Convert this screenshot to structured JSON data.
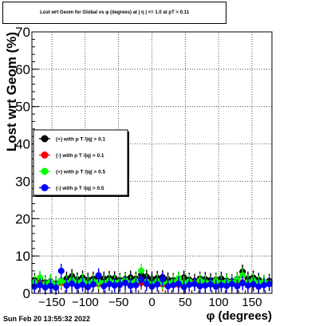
{
  "title": "Lost wrt Geom for Global vs φ (degrees) at | η | <= 1.0 at pT > 0.11",
  "timestamp": "Sun Feb 20 13:55:32 2022",
  "colors": {
    "series1": "#000000",
    "series2": "#ff0000",
    "series3": "#00ff00",
    "series4": "#0000ff"
  },
  "chart_data": {
    "type": "scatter",
    "title": "Lost wrt Geom for Global vs φ (degrees) at | η | <= 1.0 at pT > 0.11",
    "xlabel": "φ (degrees)",
    "ylabel": "Lost wrt Geom (%)",
    "xlim": [
      -180,
      180
    ],
    "ylim": [
      0,
      70
    ],
    "x_ticks": [
      -150,
      -100,
      -50,
      0,
      50,
      100,
      150
    ],
    "x_tick_labels": [
      "−150",
      "−100",
      "−50",
      "0",
      "50",
      "100",
      "150"
    ],
    "y_ticks": [
      0,
      10,
      20,
      30,
      40,
      50,
      60,
      70
    ],
    "y_tick_labels": [
      "0",
      "10",
      "20",
      "30",
      "40",
      "50",
      "60",
      "70"
    ],
    "grid": true,
    "legend_position": "middle-left",
    "series": [
      {
        "name": "(+) with p T /|q| > 0.1",
        "color": "#000000",
        "points": [
          [
            -176,
            3.5
          ],
          [
            -168,
            3.8
          ],
          [
            -160,
            2.9
          ],
          [
            -152,
            3.2
          ],
          [
            -144,
            2.6
          ],
          [
            -136,
            3.4
          ],
          [
            -128,
            3.9
          ],
          [
            -120,
            4.6
          ],
          [
            -112,
            3.7
          ],
          [
            -104,
            4.2
          ],
          [
            -96,
            3.6
          ],
          [
            -88,
            3.9
          ],
          [
            -80,
            4.4
          ],
          [
            -72,
            3.9
          ],
          [
            -64,
            4.1
          ],
          [
            -56,
            4.0
          ],
          [
            -48,
            3.5
          ],
          [
            -40,
            3.8
          ],
          [
            -32,
            4.2
          ],
          [
            -24,
            3.9
          ],
          [
            -16,
            5.0
          ],
          [
            -8,
            4.4
          ],
          [
            0,
            3.8
          ],
          [
            8,
            4.1
          ],
          [
            16,
            4.3
          ],
          [
            24,
            3.7
          ],
          [
            32,
            3.5
          ],
          [
            40,
            3.9
          ],
          [
            48,
            4.2
          ],
          [
            56,
            3.6
          ],
          [
            64,
            3.3
          ],
          [
            72,
            3.9
          ],
          [
            80,
            3.8
          ],
          [
            88,
            3.5
          ],
          [
            96,
            3.6
          ],
          [
            104,
            3.9
          ],
          [
            112,
            3.4
          ],
          [
            120,
            3.2
          ],
          [
            128,
            3.8
          ],
          [
            136,
            5.8
          ],
          [
            144,
            3.9
          ],
          [
            152,
            4.2
          ],
          [
            160,
            3.6
          ],
          [
            168,
            3.1
          ],
          [
            176,
            3.3
          ]
        ]
      },
      {
        "name": "(-) with p T /|q| > 0.1",
        "color": "#ff0000",
        "points": [
          [
            -176,
            2.2
          ],
          [
            -168,
            2.6
          ],
          [
            -160,
            2.0
          ],
          [
            -152,
            2.4
          ],
          [
            -144,
            1.9
          ],
          [
            -136,
            2.8
          ],
          [
            -128,
            2.4
          ],
          [
            -120,
            2.9
          ],
          [
            -112,
            2.3
          ],
          [
            -104,
            2.6
          ],
          [
            -96,
            2.1
          ],
          [
            -88,
            2.7
          ],
          [
            -80,
            2.5
          ],
          [
            -72,
            2.2
          ],
          [
            -64,
            2.7
          ],
          [
            -56,
            2.3
          ],
          [
            -48,
            2.6
          ],
          [
            -40,
            2.9
          ],
          [
            -32,
            2.4
          ],
          [
            -24,
            2.2
          ],
          [
            -16,
            2.8
          ],
          [
            -8,
            2.5
          ],
          [
            0,
            2.1
          ],
          [
            8,
            2.7
          ],
          [
            16,
            2.4
          ],
          [
            24,
            2.2
          ],
          [
            32,
            2.6
          ],
          [
            40,
            2.3
          ],
          [
            48,
            2.0
          ],
          [
            56,
            2.5
          ],
          [
            64,
            2.8
          ],
          [
            72,
            2.2
          ],
          [
            80,
            2.4
          ],
          [
            88,
            2.6
          ],
          [
            96,
            2.1
          ],
          [
            104,
            2.5
          ],
          [
            112,
            2.3
          ],
          [
            120,
            2.7
          ],
          [
            128,
            2.2
          ],
          [
            136,
            2.9
          ],
          [
            144,
            2.4
          ],
          [
            152,
            2.6
          ],
          [
            160,
            2.2
          ],
          [
            168,
            2.5
          ],
          [
            176,
            2.8
          ]
        ]
      },
      {
        "name": "(+) with p T /|q| > 0.5",
        "color": "#00ff00",
        "points": [
          [
            -176,
            3.0
          ],
          [
            -168,
            4.2
          ],
          [
            -160,
            2.6
          ],
          [
            -152,
            3.1
          ],
          [
            -144,
            2.4
          ],
          [
            -136,
            3.3
          ],
          [
            -128,
            2.8
          ],
          [
            -120,
            3.6
          ],
          [
            -112,
            2.9
          ],
          [
            -104,
            3.4
          ],
          [
            -96,
            2.7
          ],
          [
            -88,
            3.2
          ],
          [
            -80,
            3.0
          ],
          [
            -72,
            2.8
          ],
          [
            -64,
            3.4
          ],
          [
            -56,
            2.9
          ],
          [
            -48,
            3.1
          ],
          [
            -40,
            3.5
          ],
          [
            -32,
            2.7
          ],
          [
            -24,
            3.3
          ],
          [
            -16,
            6.0
          ],
          [
            -8,
            3.1
          ],
          [
            0,
            2.6
          ],
          [
            8,
            3.3
          ],
          [
            16,
            2.9
          ],
          [
            24,
            2.7
          ],
          [
            32,
            3.1
          ],
          [
            40,
            4.0
          ],
          [
            48,
            2.8
          ],
          [
            56,
            3.2
          ],
          [
            64,
            2.6
          ],
          [
            72,
            3.4
          ],
          [
            80,
            3.0
          ],
          [
            88,
            2.7
          ],
          [
            96,
            3.3
          ],
          [
            104,
            2.8
          ],
          [
            112,
            3.1
          ],
          [
            120,
            2.9
          ],
          [
            128,
            3.6
          ],
          [
            136,
            4.8
          ],
          [
            144,
            3.0
          ],
          [
            152,
            3.5
          ],
          [
            160,
            2.8
          ],
          [
            168,
            3.1
          ],
          [
            176,
            2.7
          ]
        ]
      },
      {
        "name": "(-) with p T /|q| > 0.5",
        "color": "#0000ff",
        "points": [
          [
            -176,
            1.8
          ],
          [
            -168,
            2.2
          ],
          [
            -160,
            1.6
          ],
          [
            -152,
            2.0
          ],
          [
            -144,
            1.5
          ],
          [
            -136,
            6.0
          ],
          [
            -128,
            2.1
          ],
          [
            -120,
            2.6
          ],
          [
            -112,
            1.9
          ],
          [
            -104,
            2.3
          ],
          [
            -96,
            1.7
          ],
          [
            -88,
            2.4
          ],
          [
            -80,
            4.8
          ],
          [
            -72,
            1.9
          ],
          [
            -64,
            2.5
          ],
          [
            -56,
            2.1
          ],
          [
            -48,
            2.3
          ],
          [
            -40,
            2.8
          ],
          [
            -32,
            2.0
          ],
          [
            -24,
            2.2
          ],
          [
            -16,
            3.6
          ],
          [
            -8,
            2.6
          ],
          [
            0,
            1.8
          ],
          [
            8,
            2.4
          ],
          [
            16,
            3.8
          ],
          [
            24,
            1.9
          ],
          [
            32,
            2.2
          ],
          [
            40,
            2.6
          ],
          [
            48,
            1.7
          ],
          [
            56,
            2.3
          ],
          [
            64,
            2.5
          ],
          [
            72,
            1.9
          ],
          [
            80,
            2.1
          ],
          [
            88,
            2.4
          ],
          [
            96,
            1.8
          ],
          [
            104,
            2.2
          ],
          [
            112,
            2.0
          ],
          [
            120,
            2.5
          ],
          [
            128,
            1.9
          ],
          [
            136,
            2.7
          ],
          [
            144,
            2.1
          ],
          [
            152,
            2.4
          ],
          [
            160,
            1.8
          ],
          [
            168,
            2.2
          ],
          [
            176,
            2.5
          ]
        ]
      }
    ]
  }
}
